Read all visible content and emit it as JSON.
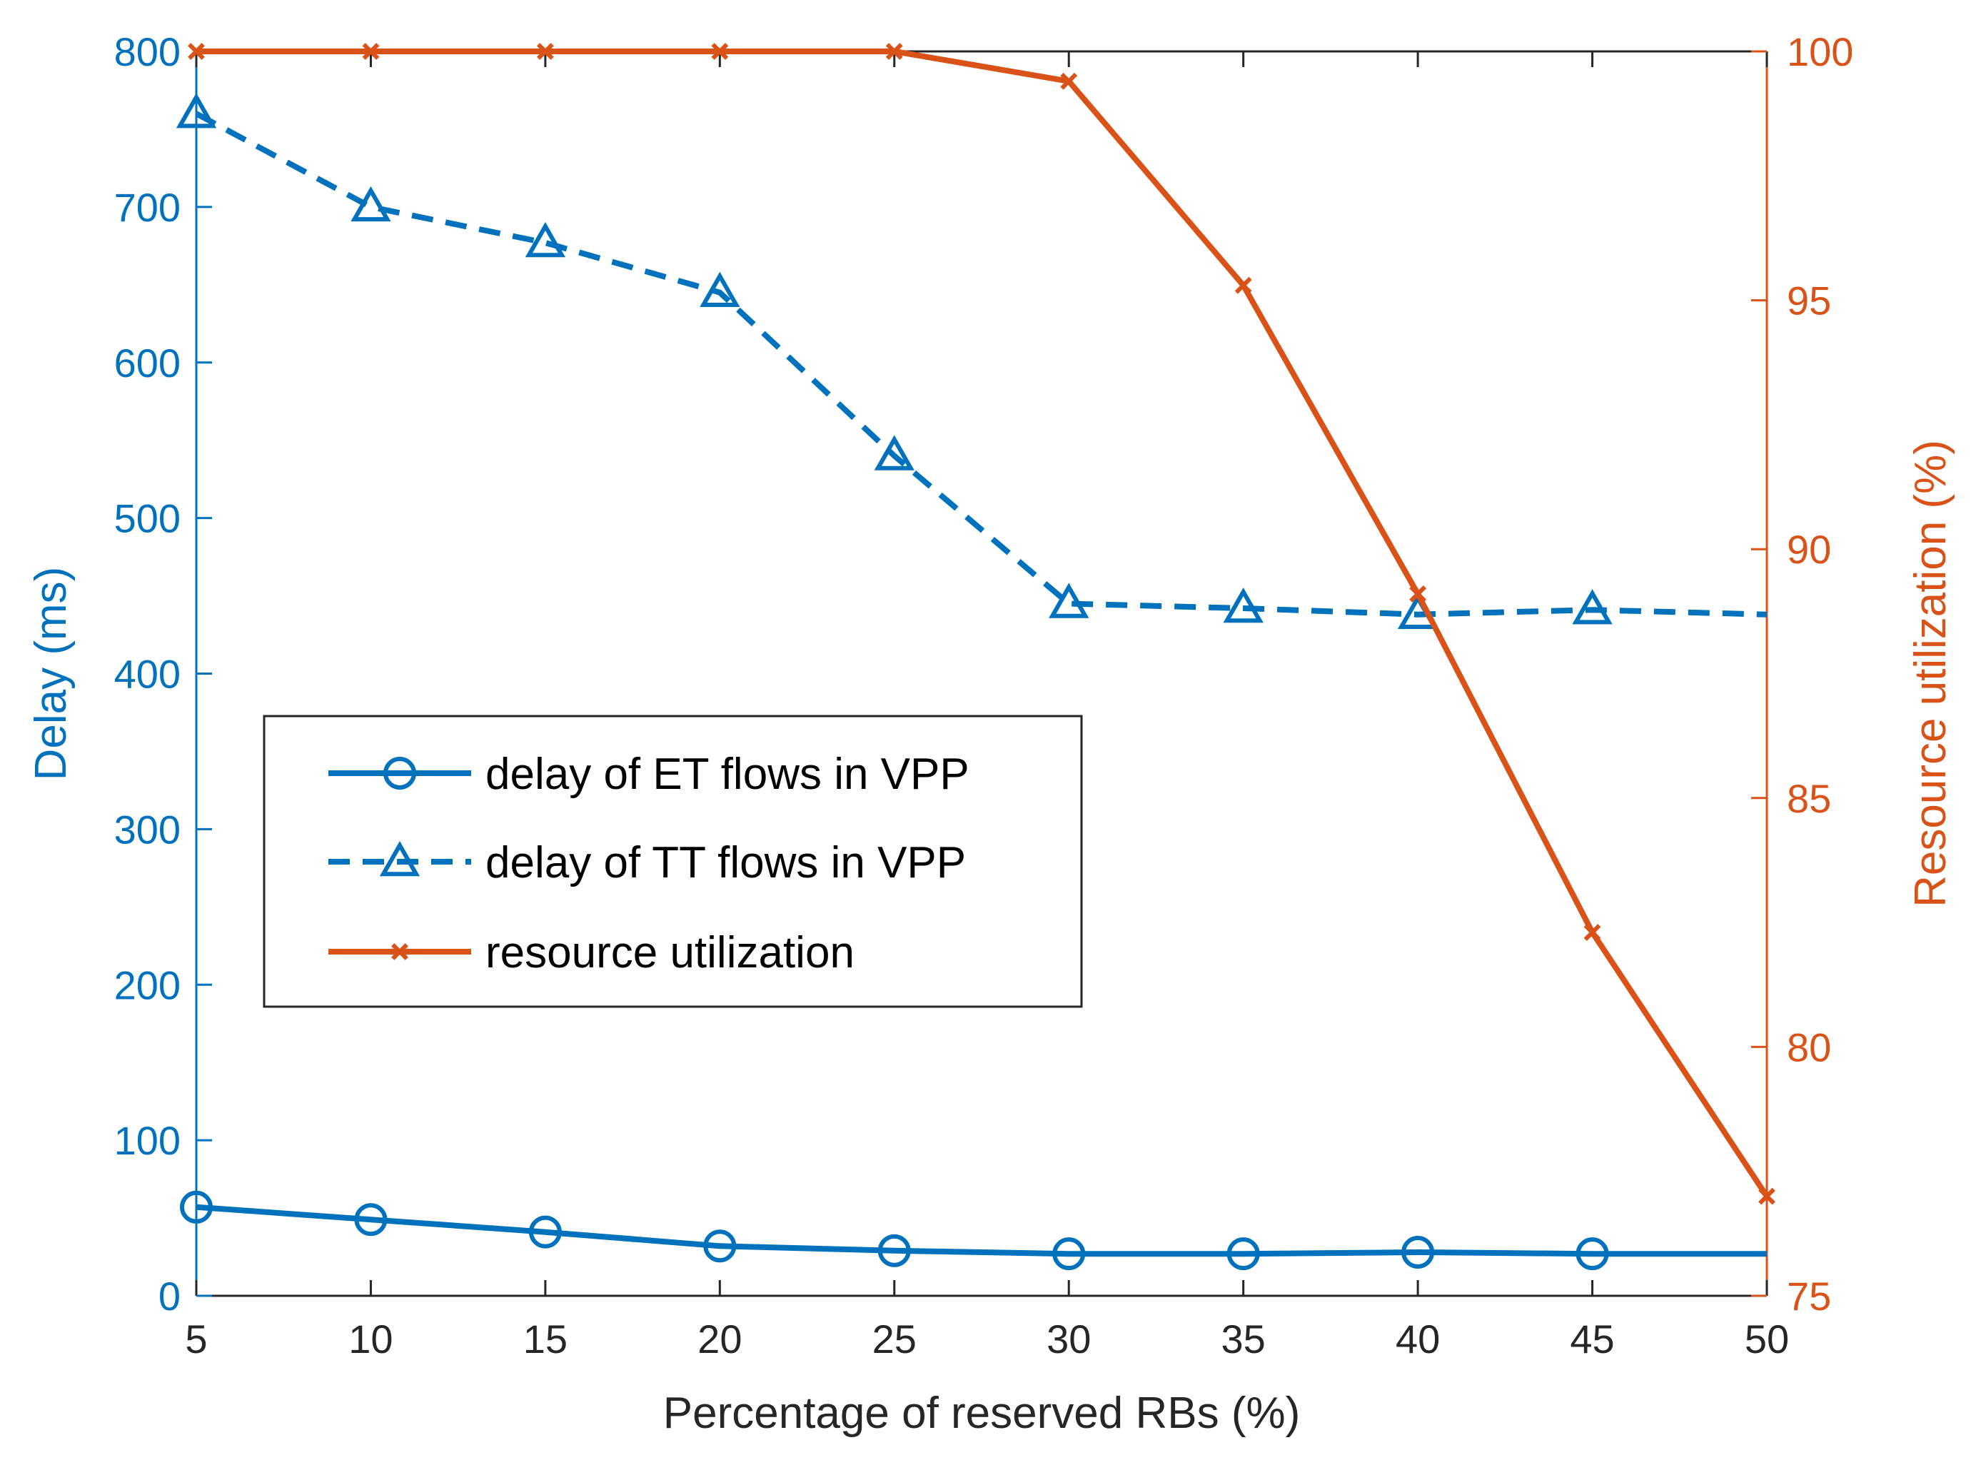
{
  "chart_data": {
    "type": "line",
    "title": "",
    "xlabel": "Percentage of reserved RBs (%)",
    "ylabel_left": "Delay (ms)",
    "ylabel_right": "Resource utilization (%)",
    "xlim": [
      5,
      50
    ],
    "ylim_left": [
      0,
      800
    ],
    "ylim_right": [
      75,
      100
    ],
    "x_ticks": [
      "5",
      "10",
      "15",
      "20",
      "25",
      "30",
      "35",
      "40",
      "45",
      "50"
    ],
    "y_ticks_left": [
      "0",
      "100",
      "200",
      "300",
      "400",
      "500",
      "600",
      "700",
      "800"
    ],
    "y_ticks_right": [
      "75",
      "80",
      "85",
      "90",
      "95",
      "100"
    ],
    "grid": false,
    "legend_position": "center-left",
    "x": [
      5,
      10,
      15,
      20,
      25,
      30,
      35,
      40,
      45,
      50
    ],
    "series": [
      {
        "name": "delay of ET flows in VPP",
        "axis": "left",
        "color": "#0072BD",
        "line_style": "solid",
        "marker": "circle",
        "values": [
          57,
          49,
          41,
          32,
          29,
          27,
          27,
          28,
          27,
          27
        ]
      },
      {
        "name": "delay of TT flows in VPP",
        "axis": "left",
        "color": "#0072BD",
        "line_style": "dashed",
        "marker": "triangle",
        "values": [
          760,
          700,
          677,
          645,
          540,
          445,
          442,
          438,
          441,
          438
        ]
      },
      {
        "name": "resource utilization",
        "axis": "right",
        "color": "#D95319",
        "line_style": "solid",
        "marker": "x",
        "values": [
          100,
          100,
          100,
          100,
          100,
          99.4,
          95.3,
          89.1,
          82.3,
          77
        ]
      }
    ]
  }
}
